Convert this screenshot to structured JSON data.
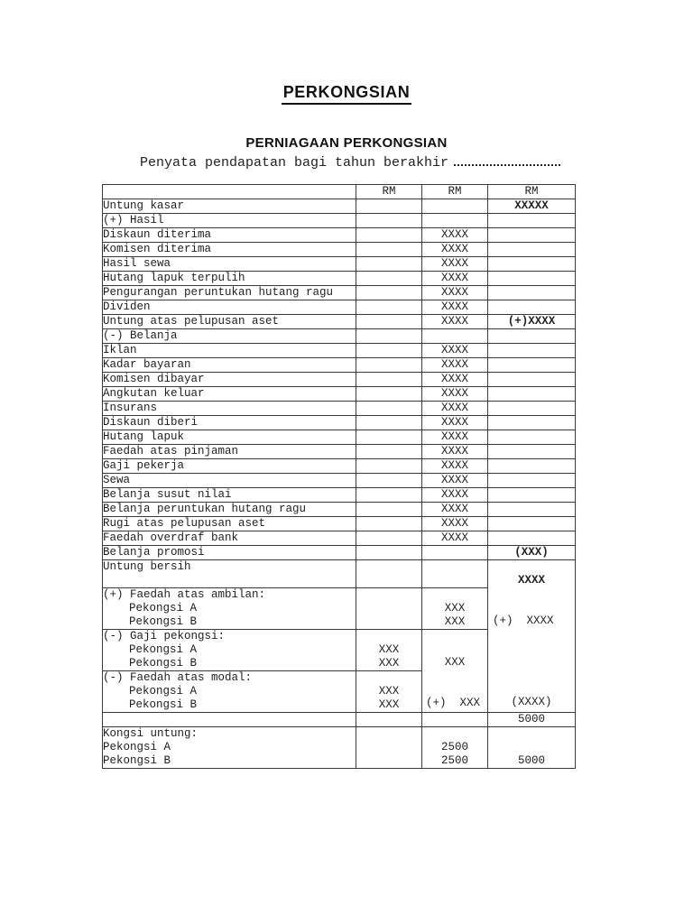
{
  "header": {
    "title": "PERKONGSIAN",
    "subtitle": "PERNIAGAAN PERKONGSIAN",
    "statement_label": "Penyata pendapatan bagi tahun berakhir"
  },
  "table": {
    "column_headers": [
      "RM",
      "RM",
      "RM"
    ],
    "upper_rows": [
      {
        "label": "Untung kasar",
        "c1": "",
        "c2": "",
        "c3": "XXXXX",
        "c3_bold": true
      },
      {
        "label": "(+) Hasil",
        "c1": "",
        "c2": "",
        "c3": ""
      },
      {
        "label": "Diskaun diterima",
        "c1": "",
        "c2": "XXXX",
        "c3": ""
      },
      {
        "label": "Komisen diterima",
        "c1": "",
        "c2": "XXXX",
        "c3": ""
      },
      {
        "label": "Hasil sewa",
        "c1": "",
        "c2": "XXXX",
        "c3": ""
      },
      {
        "label": "Hutang lapuk terpulih",
        "c1": "",
        "c2": "XXXX",
        "c3": ""
      },
      {
        "label": "Pengurangan peruntukan hutang ragu",
        "c1": "",
        "c2": "XXXX",
        "c3": ""
      },
      {
        "label": "Dividen",
        "c1": "",
        "c2": "XXXX",
        "c3": ""
      },
      {
        "label": "Untung atas pelupusan aset",
        "c1": "",
        "c2": "XXXX",
        "c3": "(+)XXXX",
        "c3_bold": true
      },
      {
        "label": "(-) Belanja",
        "c1": "",
        "c2": "",
        "c3": ""
      },
      {
        "label": "Iklan",
        "c1": "",
        "c2": "XXXX",
        "c3": ""
      },
      {
        "label": "Kadar bayaran",
        "c1": "",
        "c2": "XXXX",
        "c3": ""
      },
      {
        "label": "Komisen dibayar",
        "c1": "",
        "c2": "XXXX",
        "c3": ""
      },
      {
        "label": "Angkutan keluar",
        "c1": "",
        "c2": "XXXX",
        "c3": ""
      },
      {
        "label": "Insurans",
        "c1": "",
        "c2": "XXXX",
        "c3": ""
      },
      {
        "label": "Diskaun diberi",
        "c1": "",
        "c2": "XXXX",
        "c3": ""
      },
      {
        "label": "Hutang lapuk",
        "c1": "",
        "c2": "XXXX",
        "c3": ""
      },
      {
        "label": "Faedah atas pinjaman",
        "c1": "",
        "c2": "XXXX",
        "c3": ""
      },
      {
        "label": "Gaji pekerja",
        "c1": "",
        "c2": "XXXX",
        "c3": ""
      },
      {
        "label": "Sewa",
        "c1": "",
        "c2": "XXXX",
        "c3": ""
      },
      {
        "label": "Belanja susut nilai",
        "c1": "",
        "c2": "XXXX",
        "c3": ""
      },
      {
        "label": "Belanja peruntukan hutang ragu",
        "c1": "",
        "c2": "XXXX",
        "c3": ""
      },
      {
        "label": "Rugi atas pelupusan aset",
        "c1": "",
        "c2": "XXXX",
        "c3": ""
      },
      {
        "label": "Faedah overdraf bank",
        "c1": "",
        "c2": "XXXX",
        "c3": ""
      },
      {
        "label": "Belanja promosi",
        "c1": "",
        "c2": "",
        "c3": "(XXX)",
        "c3_bold": true
      }
    ],
    "lower": {
      "untung_bersih": {
        "label": "Untung bersih",
        "total": "XXXX"
      },
      "ambilan": {
        "header": "(+) Faedah atas ambilan:",
        "partner_a": "Pekongsi A",
        "partner_b": "Pekongsi B",
        "value_a": "XXX",
        "value_b": "XXX",
        "total": "(+)  XXXX"
      },
      "gaji": {
        "header": "(-) Gaji pekongsi:",
        "partner_a": "Pekongsi A",
        "partner_b": "Pekongsi B",
        "value_a": "XXX",
        "value_b": "XXX",
        "subtotal": "XXX"
      },
      "modal": {
        "header": "(-) Faedah atas modal:",
        "partner_a": "Pekongsi A",
        "partner_b": "Pekongsi B",
        "value_a": "XXX",
        "value_b": "XXX",
        "subtotal": "(+)  XXX",
        "total": "(XXXX)"
      },
      "net_total": "5000",
      "kongsi": {
        "header": "Kongsi untung:",
        "partner_a": "Pekongsi A",
        "partner_b": "Pekongsi B",
        "value_a": "2500",
        "value_b": "2500",
        "total": "5000"
      }
    }
  }
}
